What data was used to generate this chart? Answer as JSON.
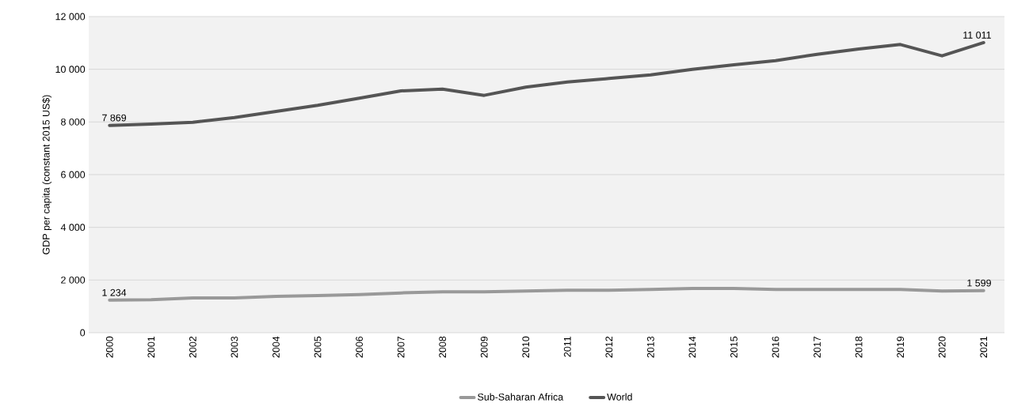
{
  "chart_data": {
    "type": "line",
    "ylabel": "GDP per capita (constant 2015 US$)",
    "categories": [
      "2000",
      "2001",
      "2002",
      "2003",
      "2004",
      "2005",
      "2006",
      "2007",
      "2008",
      "2009",
      "2010",
      "2011",
      "2012",
      "2013",
      "2014",
      "2015",
      "2016",
      "2017",
      "2018",
      "2019",
      "2020",
      "2021"
    ],
    "series": [
      {
        "name": "Sub-Saharan Africa",
        "color": "#999999",
        "values": [
          1234,
          1250,
          1320,
          1320,
          1380,
          1410,
          1450,
          1510,
          1550,
          1550,
          1580,
          1610,
          1610,
          1640,
          1680,
          1680,
          1640,
          1640,
          1640,
          1640,
          1580,
          1599
        ],
        "value_labels": [
          "1 234",
          null,
          null,
          null,
          null,
          null,
          null,
          null,
          null,
          null,
          null,
          null,
          null,
          null,
          null,
          null,
          null,
          null,
          null,
          null,
          null,
          "1 599"
        ]
      },
      {
        "name": "World",
        "color": "#555555",
        "values": [
          7869,
          7920,
          7990,
          8170,
          8400,
          8630,
          8900,
          9180,
          9250,
          9010,
          9320,
          9520,
          9650,
          9790,
          10000,
          10170,
          10330,
          10570,
          10770,
          10940,
          10510,
          11011
        ],
        "value_labels": [
          "7 869",
          null,
          null,
          null,
          null,
          null,
          null,
          null,
          null,
          null,
          null,
          null,
          null,
          null,
          null,
          null,
          null,
          null,
          null,
          null,
          null,
          "11 011"
        ]
      }
    ],
    "ylim": [
      0,
      12000
    ],
    "yticks": [
      {
        "value": 0,
        "label": "0"
      },
      {
        "value": 2000,
        "label": "2 000"
      },
      {
        "value": 4000,
        "label": "4 000"
      },
      {
        "value": 6000,
        "label": "6 000"
      },
      {
        "value": 8000,
        "label": "8 000"
      },
      {
        "value": 10000,
        "label": "10 000"
      },
      {
        "value": 12000,
        "label": "12 000"
      }
    ],
    "grid": "y",
    "legend": "bottom",
    "marker": "none",
    "line_style": "solid"
  }
}
